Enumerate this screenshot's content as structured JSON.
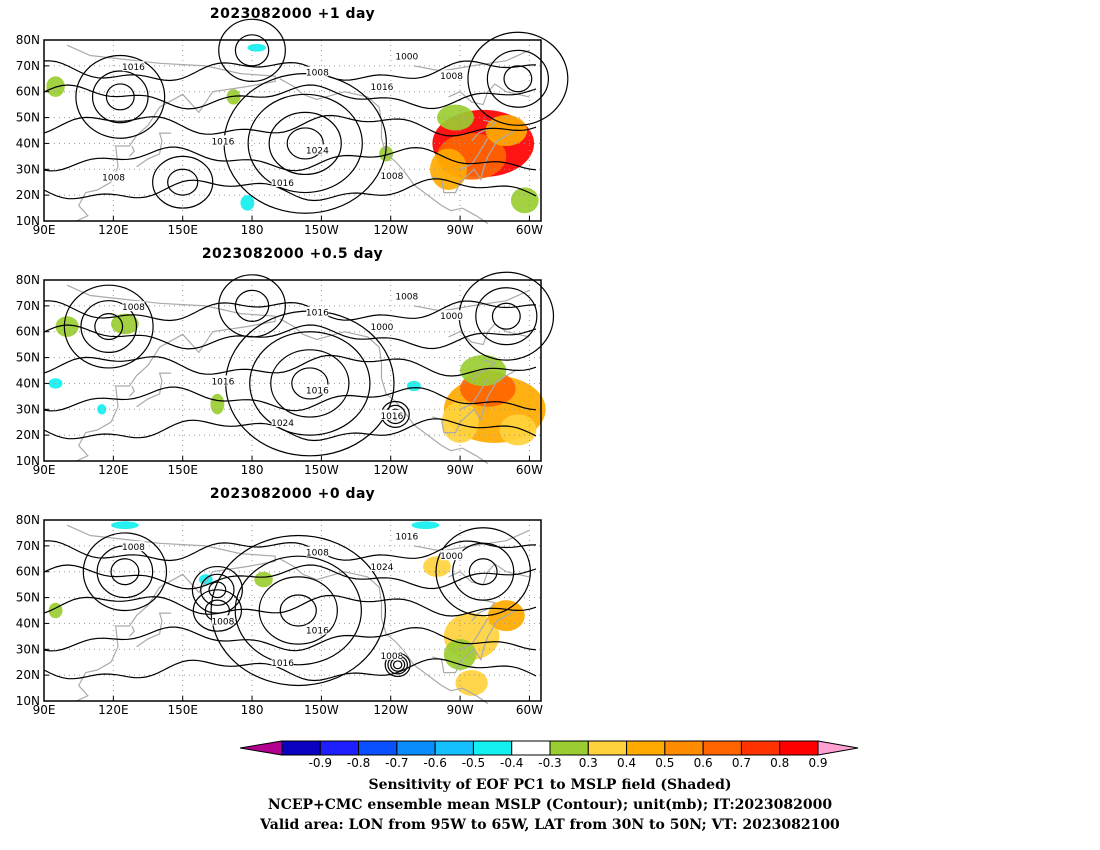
{
  "panels": [
    {
      "title": "2023082000  +1 day",
      "contour_labels": [
        "1016",
        "1008",
        "1000",
        "1016",
        "1008",
        "1016",
        "1024",
        "1016",
        "1008",
        "1008"
      ],
      "anomalies": [
        {
          "lon": -80,
          "lat": 40,
          "rx": 22,
          "ry": 13,
          "level": 0.8
        },
        {
          "lon": -85,
          "lat": 35,
          "rx": 15,
          "ry": 9,
          "level": 0.7
        },
        {
          "lon": -95,
          "lat": 30,
          "rx": 8,
          "ry": 8,
          "level": 0.6
        },
        {
          "lon": -70,
          "lat": 45,
          "rx": 9,
          "ry": 6,
          "level": 0.6
        },
        {
          "lon": -92,
          "lat": 50,
          "rx": 8,
          "ry": 5,
          "level": 0.4
        },
        {
          "lon": -62,
          "lat": 18,
          "rx": 6,
          "ry": 5,
          "level": 0.4
        },
        {
          "lon": 95,
          "lat": 62,
          "rx": 4,
          "ry": 4,
          "level": 0.4
        },
        {
          "lon": 172,
          "lat": 58,
          "rx": 3,
          "ry": 3,
          "level": 0.4
        },
        {
          "lon": 178,
          "lat": 17,
          "rx": 3,
          "ry": 3,
          "level": -0.3
        },
        {
          "lon": 182,
          "lat": 77,
          "rx": 4,
          "ry": 1.5,
          "level": -0.3
        },
        {
          "lon": -122,
          "lat": 36,
          "rx": 3,
          "ry": 3,
          "level": 0.4
        }
      ],
      "highs": [
        {
          "lon": -157,
          "lat": 40,
          "r": [
            6,
            12,
            19,
            27
          ]
        },
        {
          "lon": 150,
          "lat": 25,
          "r": [
            5,
            10
          ]
        }
      ],
      "lows": [
        {
          "lon": 123,
          "lat": 58,
          "r": [
            5,
            10,
            16
          ]
        },
        {
          "lon": -65,
          "lat": 65,
          "r": [
            5,
            11,
            18
          ]
        },
        {
          "lon": 180,
          "lat": 76,
          "r": [
            6,
            12
          ]
        }
      ]
    },
    {
      "title": "2023082000  +0.5 day",
      "contour_labels": [
        "1008",
        "1016",
        "1008",
        "1000",
        "1000",
        "1016",
        "1016",
        "1024",
        "1016"
      ],
      "anomalies": [
        {
          "lon": -75,
          "lat": 30,
          "rx": 22,
          "ry": 13,
          "level": 0.6
        },
        {
          "lon": -78,
          "lat": 38,
          "rx": 12,
          "ry": 7,
          "level": 0.7
        },
        {
          "lon": -90,
          "lat": 25,
          "rx": 8,
          "ry": 8,
          "level": 0.5
        },
        {
          "lon": -65,
          "lat": 22,
          "rx": 8,
          "ry": 6,
          "level": 0.5
        },
        {
          "lon": -80,
          "lat": 45,
          "rx": 10,
          "ry": 6,
          "level": 0.4
        },
        {
          "lon": 100,
          "lat": 62,
          "rx": 5,
          "ry": 4,
          "level": 0.4
        },
        {
          "lon": 125,
          "lat": 63,
          "rx": 6,
          "ry": 4,
          "level": 0.4
        },
        {
          "lon": 165,
          "lat": 32,
          "rx": 3,
          "ry": 4,
          "level": 0.4
        },
        {
          "lon": 95,
          "lat": 40,
          "rx": 3,
          "ry": 2,
          "level": -0.3
        },
        {
          "lon": 115,
          "lat": 30,
          "rx": 2,
          "ry": 2,
          "level": -0.3
        },
        {
          "lon": -110,
          "lat": 39,
          "rx": 3,
          "ry": 2,
          "level": -0.3
        }
      ],
      "highs": [
        {
          "lon": -155,
          "lat": 40,
          "r": [
            6,
            13,
            20,
            28
          ]
        }
      ],
      "lows": [
        {
          "lon": 118,
          "lat": 62,
          "r": [
            5,
            10,
            16
          ]
        },
        {
          "lon": -70,
          "lat": 66,
          "r": [
            5,
            11,
            17
          ]
        },
        {
          "lon": -118,
          "lat": 28,
          "r": [
            2,
            3.5,
            5
          ]
        },
        {
          "lon": 180,
          "lat": 70,
          "r": [
            6,
            12
          ]
        }
      ]
    },
    {
      "title": "2023082000  +0 day",
      "contour_labels": [
        "1008",
        "1008",
        "1016",
        "1024",
        "1000",
        "1008",
        "1016",
        "1016",
        "1008"
      ],
      "anomalies": [
        {
          "lon": -85,
          "lat": 35,
          "rx": 12,
          "ry": 9,
          "level": 0.5
        },
        {
          "lon": -70,
          "lat": 43,
          "rx": 8,
          "ry": 6,
          "level": 0.6
        },
        {
          "lon": -90,
          "lat": 28,
          "rx": 7,
          "ry": 6,
          "level": 0.4
        },
        {
          "lon": -85,
          "lat": 17,
          "rx": 7,
          "ry": 5,
          "level": 0.5
        },
        {
          "lon": -100,
          "lat": 62,
          "rx": 6,
          "ry": 4,
          "level": 0.5
        },
        {
          "lon": 95,
          "lat": 45,
          "rx": 3,
          "ry": 3,
          "level": 0.4
        },
        {
          "lon": 185,
          "lat": 57,
          "rx": 4,
          "ry": 3,
          "level": 0.4
        },
        {
          "lon": 160,
          "lat": 57,
          "rx": 3,
          "ry": 2,
          "level": -0.3
        },
        {
          "lon": 125,
          "lat": 78,
          "rx": 6,
          "ry": 1.5,
          "level": -0.3
        },
        {
          "lon": -105,
          "lat": 78,
          "rx": 6,
          "ry": 1.5,
          "level": -0.3
        }
      ],
      "highs": [
        {
          "lon": -160,
          "lat": 45,
          "r": [
            6,
            13,
            21,
            29
          ]
        },
        {
          "lon": 165,
          "lat": 45,
          "r": [
            4,
            8
          ]
        }
      ],
      "lows": [
        {
          "lon": 165,
          "lat": 53,
          "r": [
            3,
            6,
            9
          ]
        },
        {
          "lon": -117,
          "lat": 24,
          "r": [
            1.5,
            2.5,
            3.5,
            4.5
          ]
        },
        {
          "lon": 125,
          "lat": 60,
          "r": [
            5,
            10,
            15
          ]
        },
        {
          "lon": -80,
          "lat": 60,
          "r": [
            5,
            11,
            17
          ]
        }
      ]
    }
  ],
  "axes": {
    "y_ticks": [
      "80N",
      "70N",
      "60N",
      "50N",
      "40N",
      "30N",
      "20N",
      "10N"
    ],
    "x_ticks": [
      "90E",
      "120E",
      "150E",
      "180",
      "150W",
      "120W",
      "90W",
      "60W"
    ]
  },
  "colorbar": {
    "tick_labels": [
      "-0.9",
      "-0.8",
      "-0.7",
      "-0.6",
      "-0.5",
      "-0.4",
      "-0.3",
      "0.3",
      "0.4",
      "0.5",
      "0.6",
      "0.7",
      "0.8",
      "0.9"
    ],
    "colors": [
      "#b40090",
      "#0a00c0",
      "#1e1eff",
      "#0a50ff",
      "#0a8cff",
      "#14c0ff",
      "#14f0f0",
      "#ffffff",
      "#9acd32",
      "#ffd23c",
      "#ffaa00",
      "#ff8c00",
      "#ff6400",
      "#ff3200",
      "#ff0000",
      "#ffa0d2"
    ],
    "level_colors": {
      "-0.3": "#14f0f0",
      "0.4": "#9acd32",
      "0.5": "#ffd23c",
      "0.6": "#ffaa00",
      "0.7": "#ff6400",
      "0.8": "#ff0000"
    }
  },
  "captions": [
    "Sensitivity of EOF PC1 to MSLP field (Shaded)",
    "NCEP+CMC ensemble mean MSLP (Contour); unit(mb); IT:2023082000",
    "Valid area: LON from 95W to 65W, LAT from 30N to 50N; VT: 2023082100"
  ]
}
